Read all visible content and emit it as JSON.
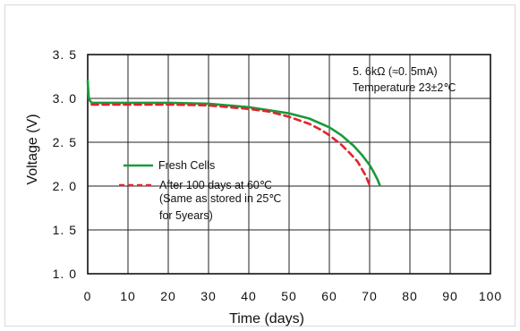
{
  "chart_data": {
    "type": "line",
    "title": "",
    "xlabel": "Time (days)",
    "ylabel": "Voltage (V)",
    "xlim": [
      0,
      100
    ],
    "ylim": [
      1.0,
      3.5
    ],
    "x_ticks": [
      "0",
      "10",
      "20",
      "30",
      "40",
      "50",
      "60",
      "70",
      "80",
      "90",
      "100"
    ],
    "y_ticks": [
      "1. 0",
      "1. 5",
      "2. 0",
      "2. 5",
      "3. 0",
      "3. 5"
    ],
    "grid": true,
    "legend_position": "middle-left",
    "annotation": {
      "line1": "5. 6kΩ (≈0. 5mA)",
      "line2": "Temperature 23±2℃"
    },
    "legend": {
      "entries": [
        {
          "label": "Fresh Cells",
          "sublines": []
        },
        {
          "label": "After 100 days at 60℃",
          "sublines": [
            "(Same as stored in 25℃",
            " for 5years)"
          ]
        }
      ]
    },
    "series": [
      {
        "name": "Fresh Cells",
        "color": "#1a9a3a",
        "style": "solid",
        "x": [
          0,
          0.15,
          0.3,
          0.6,
          1,
          2,
          5,
          10,
          20,
          30,
          40,
          50,
          55,
          60,
          63,
          66,
          68,
          70,
          71,
          72,
          72.5
        ],
        "y": [
          3.2,
          3.08,
          3.0,
          2.97,
          2.95,
          2.95,
          2.95,
          2.95,
          2.95,
          2.94,
          2.9,
          2.83,
          2.77,
          2.67,
          2.58,
          2.46,
          2.36,
          2.24,
          2.16,
          2.07,
          2.01
        ]
      },
      {
        "name": "After 100 days at 60℃",
        "color": "#e0242c",
        "style": "dashed",
        "x": [
          1,
          5,
          10,
          20,
          30,
          40,
          45,
          50,
          55,
          58,
          60,
          63,
          65,
          67,
          68,
          69,
          70
        ],
        "y": [
          2.93,
          2.93,
          2.93,
          2.93,
          2.92,
          2.88,
          2.85,
          2.79,
          2.71,
          2.64,
          2.58,
          2.47,
          2.38,
          2.28,
          2.2,
          2.12,
          2.01
        ]
      }
    ]
  }
}
